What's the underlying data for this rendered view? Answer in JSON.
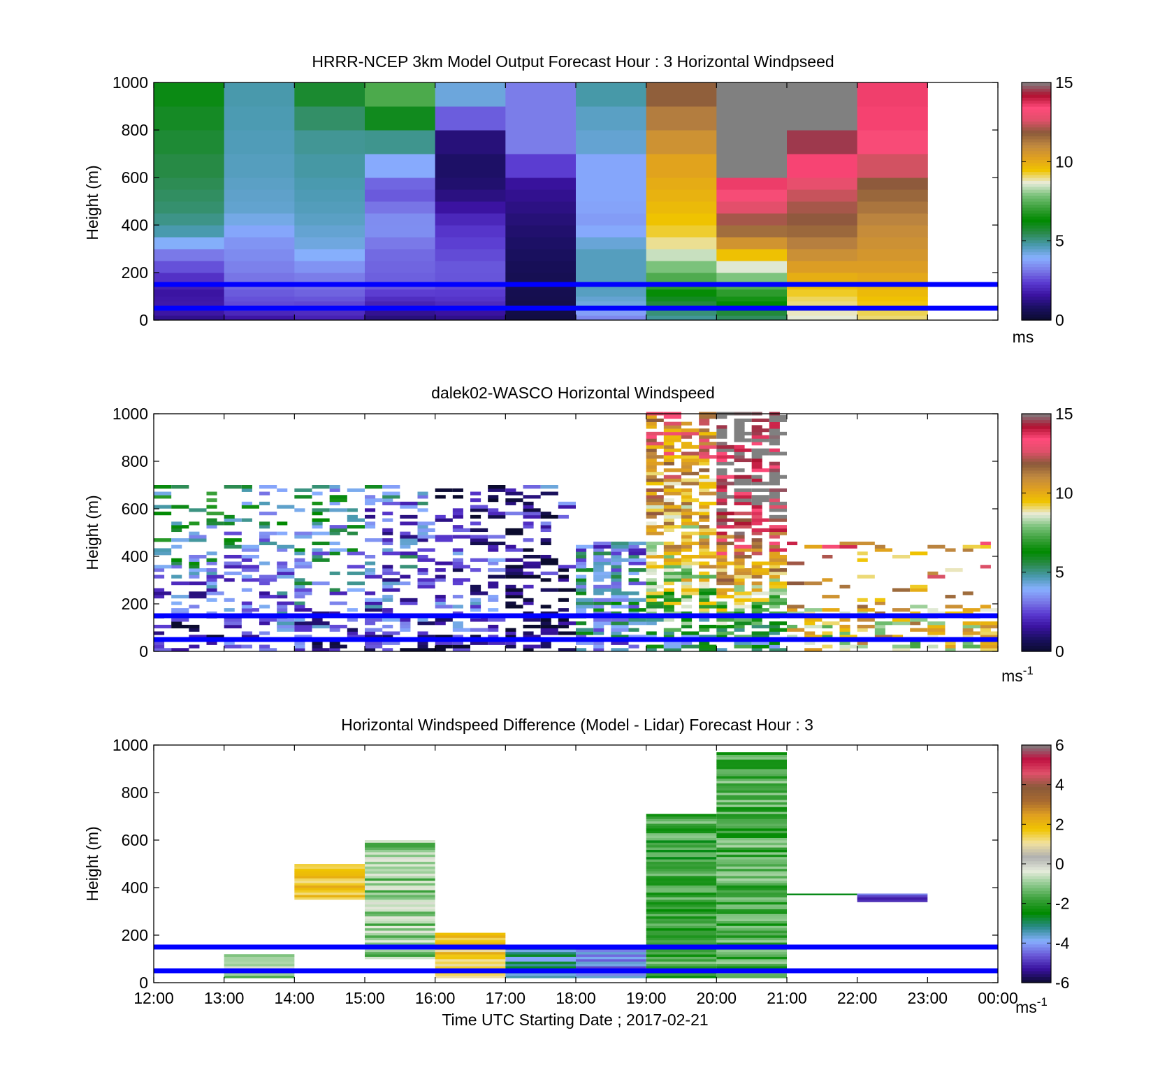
{
  "colors": {
    "speed_scale": [
      "#0b0b2e",
      "#1a1060",
      "#3a12a0",
      "#5a3ad0",
      "#7a7ae8",
      "#88b0ff",
      "#4a9ab0",
      "#2a8a4a",
      "#008a00",
      "#3aa03a",
      "#7ac27a",
      "#e9ecdc",
      "#f0c400",
      "#e0a020",
      "#c08840",
      "#8a5a3a",
      "#e0506a",
      "#ff4a7a",
      "#b01030",
      "#808080"
    ],
    "diff_scale": [
      "#0b0b2e",
      "#3a12a0",
      "#6a5ad8",
      "#88b0ff",
      "#2a8a8a",
      "#008a00",
      "#3aa03a",
      "#8ac88a",
      "#e6ecdc",
      "#b0b0b0",
      "#f2e2a0",
      "#f0c400",
      "#e0a020",
      "#a86a30",
      "#8a5a3a",
      "#e0506a",
      "#c01040",
      "#808080"
    ],
    "height_lines": "#0000ff"
  },
  "chart_data": [
    {
      "type": "heatmap",
      "title": "HRRR-NCEP 3km Model Output   Forecast Hour : 3 Horizontal Windpseed",
      "ylabel": "Height (m)",
      "ylim": [
        0,
        1000
      ],
      "yticks": [
        "0",
        "200",
        "400",
        "600",
        "800",
        "1000"
      ],
      "xlim": [
        12,
        24
      ],
      "colorbar": {
        "ticks": [
          "0",
          "5",
          "10",
          "15"
        ],
        "range": [
          0,
          15
        ],
        "unit": "ms"
      },
      "height_lines": [
        50,
        150
      ],
      "columns": [
        {
          "t": 12,
          "profile": [
            [
              0,
              1.2
            ],
            [
              40,
              1.8
            ],
            [
              120,
              1.6
            ],
            [
              220,
              2.6
            ],
            [
              300,
              3.4
            ],
            [
              350,
              4.6
            ],
            [
              450,
              5.2
            ],
            [
              600,
              5.5
            ],
            [
              900,
              6.0
            ],
            [
              1000,
              6.2
            ]
          ]
        },
        {
          "t": 13,
          "profile": [
            [
              0,
              1.5
            ],
            [
              60,
              2.5
            ],
            [
              200,
              3.2
            ],
            [
              350,
              3.6
            ],
            [
              450,
              4.4
            ],
            [
              550,
              4.5
            ],
            [
              650,
              4.6
            ],
            [
              1000,
              4.8
            ]
          ]
        },
        {
          "t": 14,
          "profile": [
            [
              0,
              1.8
            ],
            [
              100,
              2.8
            ],
            [
              200,
              3.3
            ],
            [
              300,
              4.2
            ],
            [
              450,
              4.6
            ],
            [
              800,
              5.0
            ],
            [
              900,
              5.6
            ],
            [
              1000,
              6.0
            ]
          ]
        },
        {
          "t": 15,
          "profile": [
            [
              0,
              1.0
            ],
            [
              60,
              1.8
            ],
            [
              150,
              2.8
            ],
            [
              300,
              3.0
            ],
            [
              400,
              3.6
            ],
            [
              550,
              2.6
            ],
            [
              700,
              4.5
            ],
            [
              850,
              6.0
            ],
            [
              1000,
              8.0
            ]
          ]
        },
        {
          "t": 16,
          "profile": [
            [
              0,
              1.2
            ],
            [
              80,
              2.2
            ],
            [
              200,
              2.8
            ],
            [
              400,
              2.2
            ],
            [
              550,
              1.0
            ],
            [
              700,
              0.8
            ],
            [
              800,
              1.4
            ],
            [
              900,
              4.2
            ],
            [
              1000,
              4.4
            ]
          ]
        },
        {
          "t": 17,
          "profile": [
            [
              0,
              0.3
            ],
            [
              80,
              0.5
            ],
            [
              200,
              0.6
            ],
            [
              400,
              1.0
            ],
            [
              600,
              1.6
            ],
            [
              700,
              3.2
            ],
            [
              1000,
              3.2
            ]
          ]
        },
        {
          "t": 18,
          "profile": [
            [
              0,
              3.2
            ],
            [
              60,
              4.2
            ],
            [
              120,
              4.6
            ],
            [
              300,
              4.6
            ],
            [
              400,
              3.6
            ],
            [
              500,
              3.8
            ],
            [
              650,
              3.8
            ],
            [
              750,
              4.4
            ],
            [
              900,
              4.6
            ],
            [
              1000,
              5.0
            ]
          ]
        },
        {
          "t": 19,
          "profile": [
            [
              0,
              4.8
            ],
            [
              80,
              5.8
            ],
            [
              150,
              7.0
            ],
            [
              250,
              8.2
            ],
            [
              350,
              9.2
            ],
            [
              500,
              9.8
            ],
            [
              650,
              10.2
            ],
            [
              800,
              11.0
            ],
            [
              1000,
              12.0
            ]
          ]
        },
        {
          "t": 20,
          "profile": [
            [
              0,
              5.2
            ],
            [
              60,
              6.2
            ],
            [
              120,
              7.0
            ],
            [
              250,
              9.0
            ],
            [
              350,
              11.2
            ],
            [
              500,
              13.0
            ],
            [
              600,
              13.8
            ],
            [
              650,
              15.0
            ],
            [
              1000,
              15.0
            ]
          ]
        },
        {
          "t": 21,
          "profile": [
            [
              0,
              8.6
            ],
            [
              100,
              9.2
            ],
            [
              250,
              10.6
            ],
            [
              400,
              11.8
            ],
            [
              500,
              12.2
            ],
            [
              600,
              13.0
            ],
            [
              700,
              14.0
            ],
            [
              800,
              15.0
            ],
            [
              1000,
              15.0
            ]
          ]
        },
        {
          "t": 22,
          "profile": [
            [
              0,
              9.0
            ],
            [
              100,
              9.6
            ],
            [
              250,
              10.5
            ],
            [
              400,
              11.0
            ],
            [
              500,
              11.5
            ],
            [
              600,
              12.0
            ],
            [
              700,
              13.0
            ],
            [
              800,
              13.5
            ],
            [
              1000,
              13.6
            ]
          ]
        }
      ]
    },
    {
      "type": "heatmap",
      "title": "dalek02-WASCO  Horizontal Windspeed",
      "ylabel": "Height (m)",
      "ylim": [
        0,
        1000
      ],
      "yticks": [
        "0",
        "200",
        "400",
        "600",
        "800",
        "1000"
      ],
      "xlim": [
        12,
        24
      ],
      "colorbar": {
        "ticks": [
          "0",
          "5",
          "10",
          "15"
        ],
        "range": [
          0,
          15
        ],
        "unit": "ms",
        "unit_exp": "-1"
      },
      "height_lines": [
        50,
        150
      ],
      "sparse_observations": true
    },
    {
      "type": "heatmap",
      "title": "Horizontal Windspeed Difference (Model - Lidar) Forecast Hour : 3",
      "ylabel": "Height (m)",
      "xlabel": "Time UTC  Starting Date ; 2017-02-21",
      "ylim": [
        0,
        1000
      ],
      "yticks": [
        "0",
        "200",
        "400",
        "600",
        "800",
        "1000"
      ],
      "xlim": [
        12,
        24
      ],
      "xticks": [
        "12:00",
        "13:00",
        "14:00",
        "15:00",
        "16:00",
        "17:00",
        "18:00",
        "19:00",
        "20:00",
        "21:00",
        "22:00",
        "23:00",
        "00:00"
      ],
      "colorbar": {
        "ticks": [
          "-6",
          "-4",
          "-2",
          "0",
          "2",
          "4",
          "6"
        ],
        "range": [
          -6,
          6
        ],
        "unit": "ms",
        "unit_exp": "-1"
      },
      "height_lines": [
        50,
        150
      ],
      "blocks": [
        {
          "t": 13,
          "bottom": 20,
          "top": 120,
          "value": -0.8
        },
        {
          "t": 14,
          "bottom": 350,
          "top": 500,
          "value": 1.8
        },
        {
          "t": 15,
          "bottom": 100,
          "top": 600,
          "value": -1.0
        },
        {
          "t": 16,
          "bottom": 20,
          "top": 210,
          "value": 1.6
        },
        {
          "t": 17,
          "bottom": 20,
          "top": 160,
          "value": -3.4
        },
        {
          "t": 18,
          "bottom": 20,
          "top": 160,
          "value": -4.2
        },
        {
          "t": 19,
          "bottom": 20,
          "top": 710,
          "value": -1.8
        },
        {
          "t": 20,
          "bottom": 20,
          "top": 970,
          "value": -1.6
        },
        {
          "t": 21,
          "bottom": 370,
          "top": 375,
          "value": -2.6
        },
        {
          "t": 22,
          "bottom": 340,
          "top": 375,
          "value": -5.0
        }
      ]
    }
  ]
}
